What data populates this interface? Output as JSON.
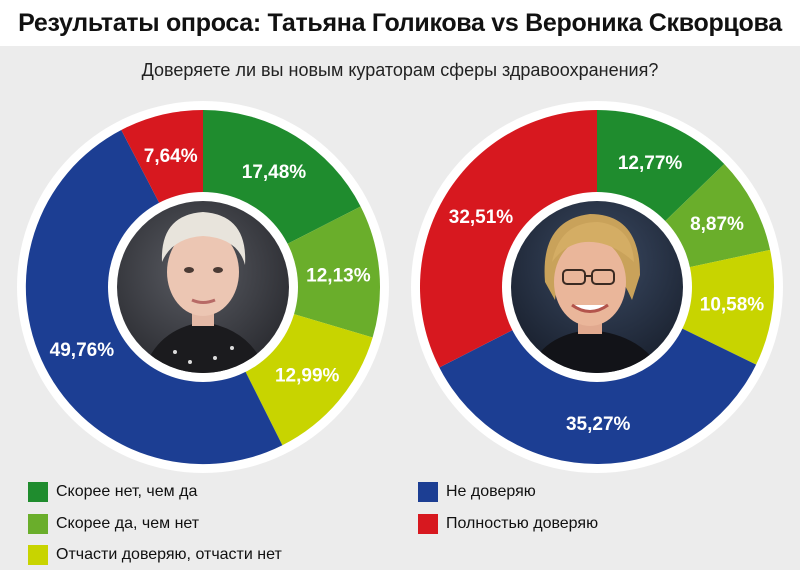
{
  "header": {
    "title": "Результаты опроса: Татьяна Голикова vs Вероника Скворцова",
    "subtitle": "Доверяете ли вы новым кураторам сферы здравоохранения?"
  },
  "colors": {
    "dark_green": "#1f8c2e",
    "light_green": "#6aae2b",
    "yellow_green": "#c8d400",
    "blue": "#1c3e93",
    "red": "#d7181f"
  },
  "legend": [
    {
      "label": "Скорее нет, чем да",
      "color": "#1f8c2e"
    },
    {
      "label": "Скорее да, чем нет",
      "color": "#6aae2b"
    },
    {
      "label": "Отчасти доверяю, отчасти нет",
      "color": "#c8d400"
    },
    {
      "label": "Не доверяю",
      "color": "#1c3e93"
    },
    {
      "label": "Полностью доверяю",
      "color": "#d7181f"
    }
  ],
  "chart_data": [
    {
      "type": "pie",
      "person_photo": "golikova-portrait",
      "slices": [
        {
          "category": "Скорее нет, чем да",
          "value": 17.48,
          "label": "17,48%",
          "color": "#1f8c2e"
        },
        {
          "category": "Скорее да, чем нет",
          "value": 12.13,
          "label": "12,13%",
          "color": "#6aae2b"
        },
        {
          "category": "Отчасти доверяю, отчасти нет",
          "value": 12.99,
          "label": "12,99%",
          "color": "#c8d400"
        },
        {
          "category": "Не доверяю",
          "value": 49.76,
          "label": "49,76%",
          "color": "#1c3e93"
        },
        {
          "category": "Полностью доверяю",
          "value": 7.64,
          "label": "7,64%",
          "color": "#d7181f"
        }
      ]
    },
    {
      "type": "pie",
      "person_photo": "skvortsova-portrait",
      "slices": [
        {
          "category": "Скорее нет, чем да",
          "value": 12.77,
          "label": "12,77%",
          "color": "#1f8c2e"
        },
        {
          "category": "Скорее да, чем нет",
          "value": 8.87,
          "label": "8,87%",
          "color": "#6aae2b"
        },
        {
          "category": "Отчасти доверяю, отчасти нет",
          "value": 10.58,
          "label": "10,58%",
          "color": "#c8d400"
        },
        {
          "category": "Не доверяю",
          "value": 35.27,
          "label": "35,27%",
          "color": "#1c3e93"
        },
        {
          "category": "Полностью доверяю",
          "value": 32.51,
          "label": "32,51%",
          "color": "#d7181f"
        }
      ]
    }
  ]
}
